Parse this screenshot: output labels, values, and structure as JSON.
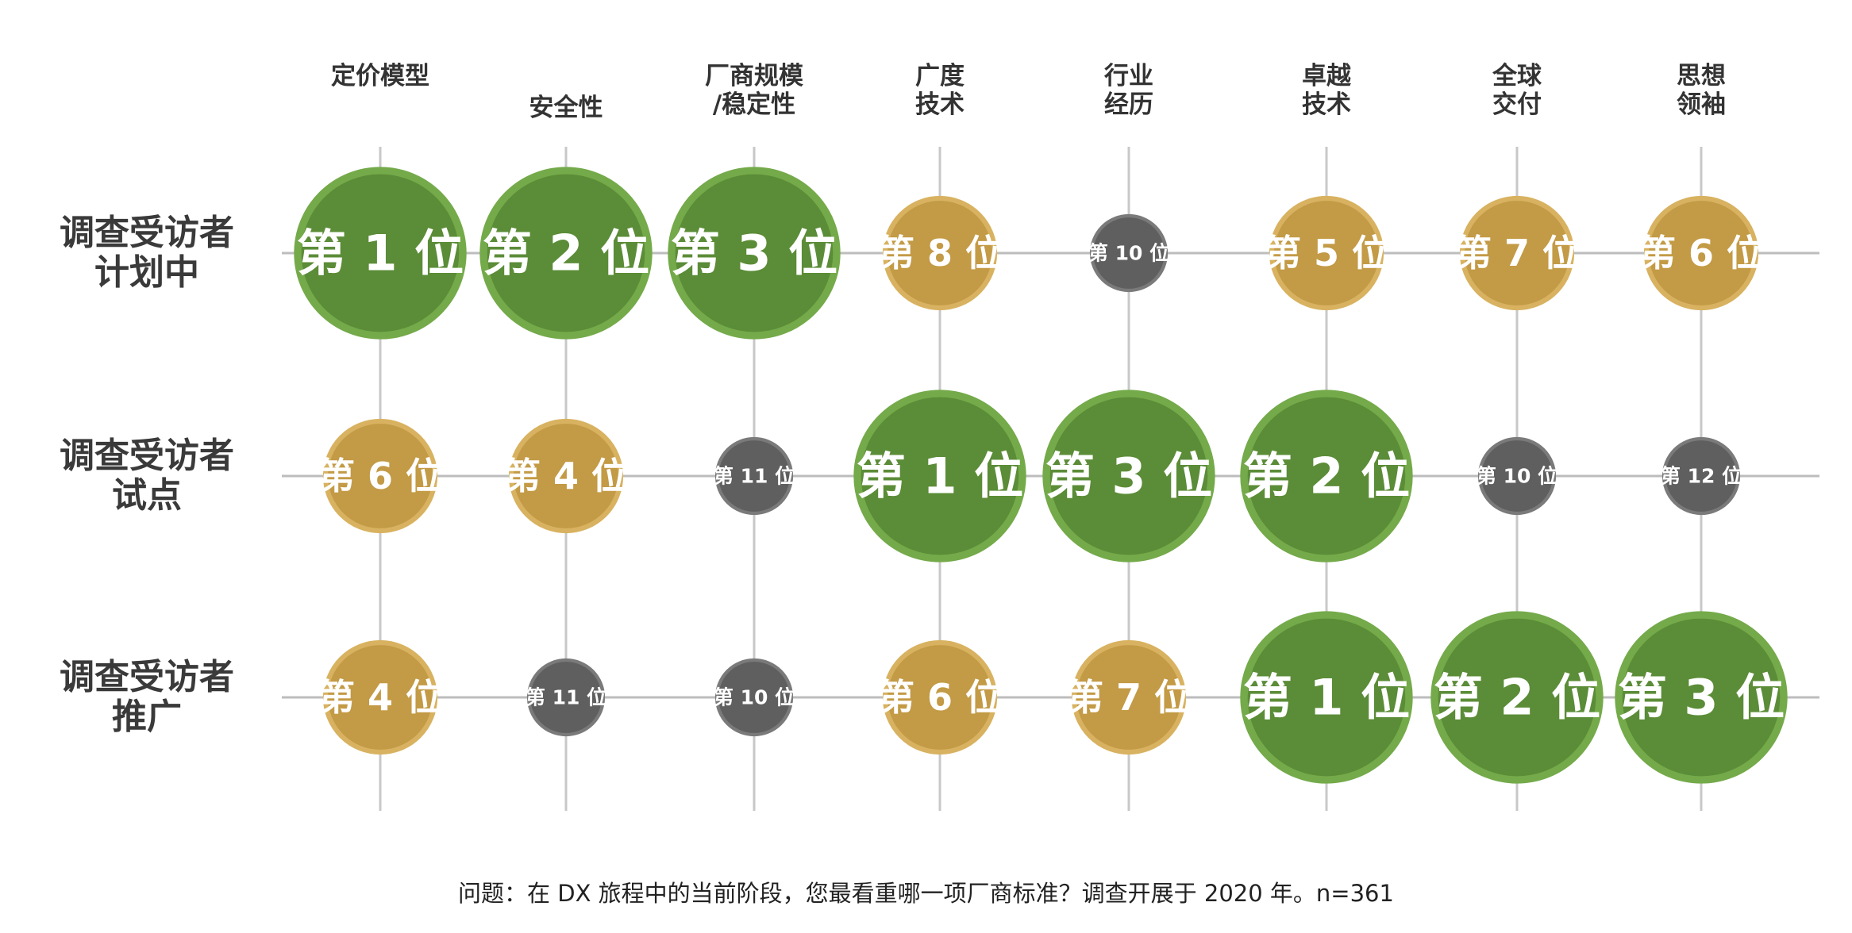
{
  "columns": [
    "定价模型",
    "安全性",
    "厂商规模\n/稳定性",
    "广度\n技术",
    "行业\n经历",
    "卓越\n技术",
    "全球\n交付",
    "思想\n领袖"
  ],
  "rows": [
    {
      "label": "调查受访者\n计划中",
      "cells": [
        {
          "rank": 1,
          "label": "第 1 位"
        },
        {
          "rank": 2,
          "label": "第 2 位"
        },
        {
          "rank": 3,
          "label": "第 3 位"
        },
        {
          "rank": 8,
          "label": "第 8 位"
        },
        {
          "rank": 10,
          "label": "第 10 位"
        },
        {
          "rank": 5,
          "label": "第 5 位"
        },
        {
          "rank": 7,
          "label": "第 7 位"
        },
        {
          "rank": 6,
          "label": "第 6 位"
        }
      ]
    },
    {
      "label": "调查受访者\n试点",
      "cells": [
        {
          "rank": 6,
          "label": "第 6 位"
        },
        {
          "rank": 4,
          "label": "第 4 位"
        },
        {
          "rank": 11,
          "label": "第 11 位"
        },
        {
          "rank": 1,
          "label": "第 1 位"
        },
        {
          "rank": 3,
          "label": "第 3 位"
        },
        {
          "rank": 2,
          "label": "第 2 位"
        },
        {
          "rank": 10,
          "label": "第 10 位"
        },
        {
          "rank": 12,
          "label": "第 12 位"
        }
      ]
    },
    {
      "label": "调查受访者\n推广",
      "cells": [
        {
          "rank": 4,
          "label": "第 4 位"
        },
        {
          "rank": 11,
          "label": "第 11 位"
        },
        {
          "rank": 10,
          "label": "第 10 位"
        },
        {
          "rank": 6,
          "label": "第 6 位"
        },
        {
          "rank": 7,
          "label": "第 7 位"
        },
        {
          "rank": 1,
          "label": "第 1 位"
        },
        {
          "rank": 2,
          "label": "第 2 位"
        },
        {
          "rank": 3,
          "label": "第 3 位"
        }
      ]
    }
  ],
  "footnote": "问题：在 DX 旅程中的当前阶段，您最看重哪一项厂商标准？调查开展于 2020 年。n=361"
}
